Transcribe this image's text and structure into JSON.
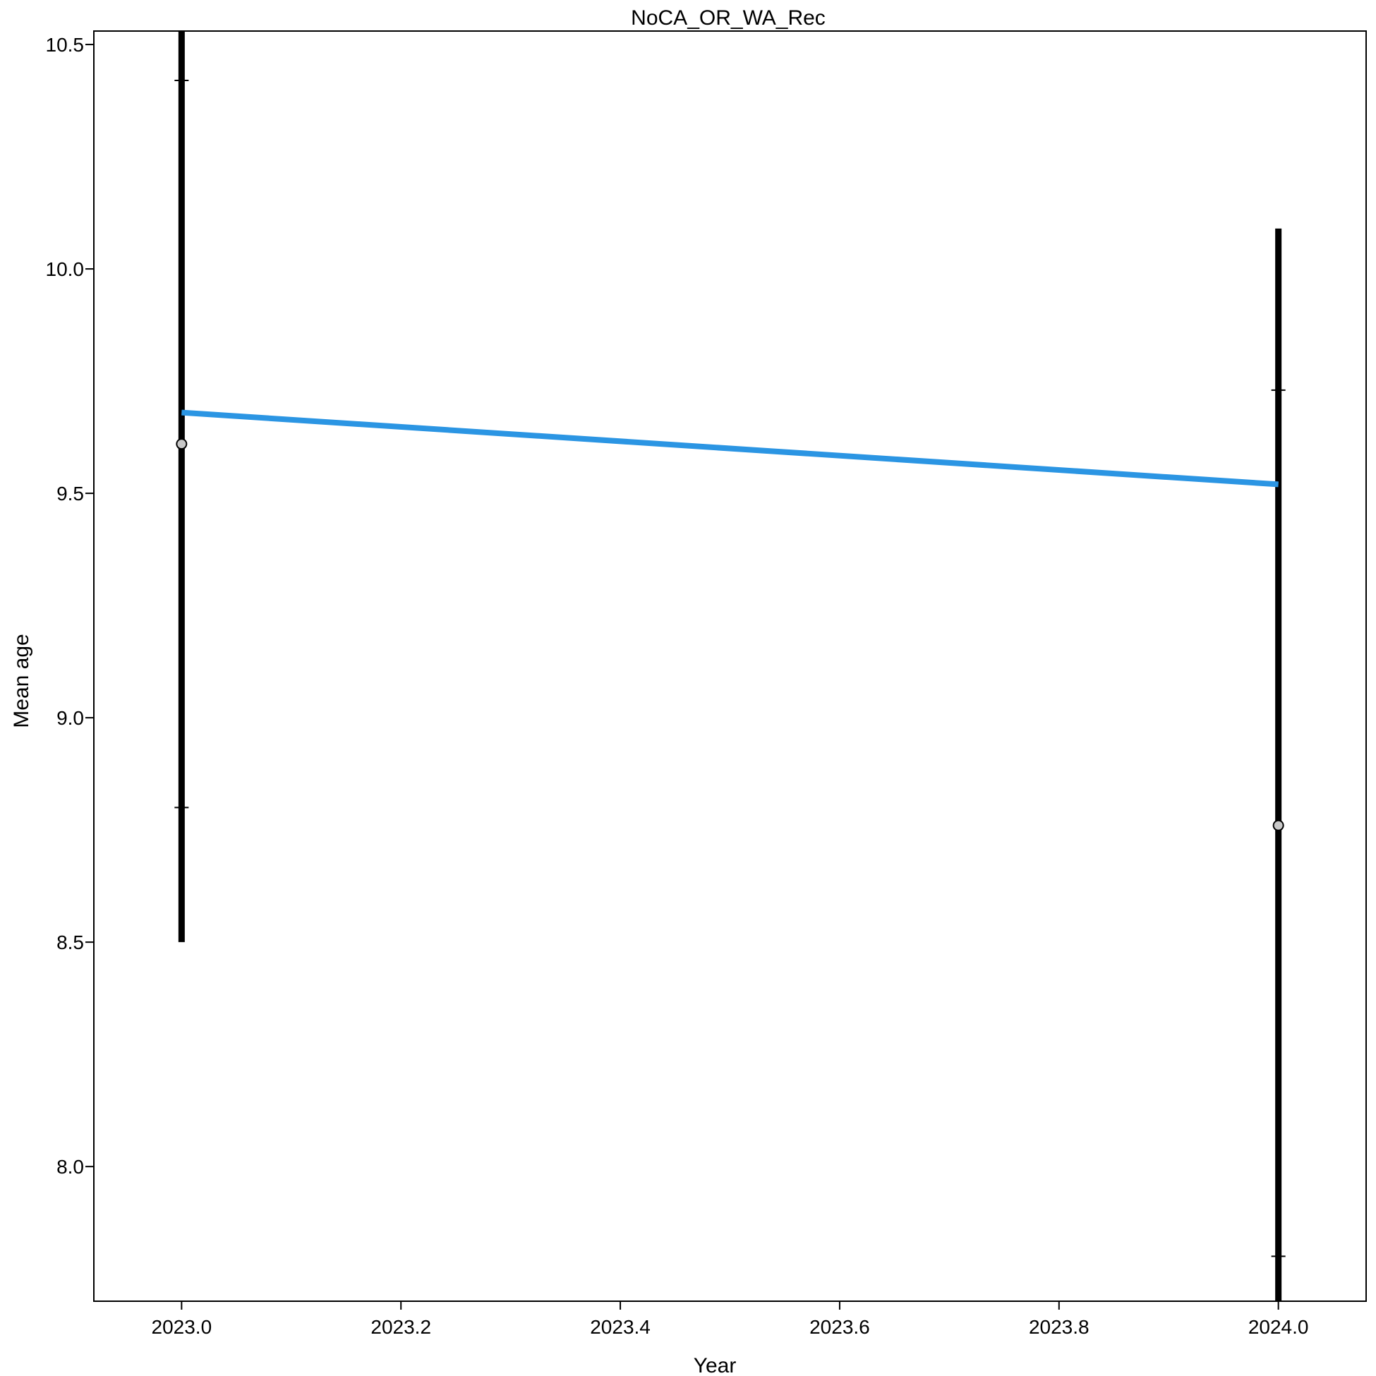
{
  "chart_data": {
    "type": "line",
    "title": "NoCA_OR_WA_Rec",
    "xlabel": "Year",
    "ylabel": "Mean age",
    "xlim": [
      2022.92,
      2024.08
    ],
    "ylim": [
      7.7,
      10.53
    ],
    "xticks": [
      2023.0,
      2023.2,
      2023.4,
      2023.6,
      2023.8,
      2024.0
    ],
    "xtick_labels": [
      "2023.0",
      "2023.2",
      "2023.4",
      "2023.6",
      "2023.8",
      "2024.0"
    ],
    "yticks": [
      8.0,
      8.5,
      9.0,
      9.5,
      10.0,
      10.5
    ],
    "ytick_labels": [
      "8.0",
      "8.5",
      "9.0",
      "9.5",
      "10.0",
      "10.5"
    ],
    "grid": false,
    "observed": {
      "x": [
        2023.0,
        2024.0
      ],
      "y": [
        9.61,
        8.76
      ],
      "inner_lower": [
        8.8,
        7.8
      ],
      "inner_upper": [
        10.42,
        9.73
      ],
      "outer_lower": [
        8.5,
        7.7
      ],
      "outer_upper": [
        10.53,
        10.09
      ],
      "marker_color": "#c8c8c8",
      "bar_color": "#000000"
    },
    "expected": {
      "x": [
        2023.0,
        2024.0
      ],
      "y": [
        9.68,
        9.52
      ],
      "color": "#2b95e3"
    }
  }
}
